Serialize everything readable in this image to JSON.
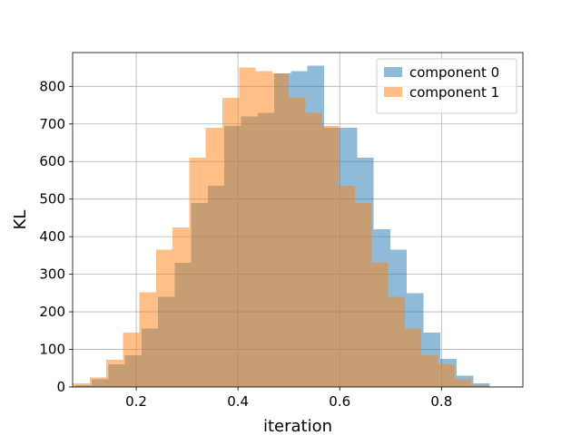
{
  "chart_data": {
    "type": "bar",
    "subtype": "overlaid-histogram",
    "title": "",
    "xlabel": "iteration",
    "ylabel": "KL",
    "xlim": [
      0.075,
      0.96
    ],
    "ylim": [
      0,
      890
    ],
    "xticks": [
      0.2,
      0.4,
      0.6,
      0.8
    ],
    "xtick_labels": [
      "0.2",
      "0.4",
      "0.6",
      "0.8"
    ],
    "yticks": [
      0,
      100,
      200,
      300,
      400,
      500,
      600,
      700,
      800
    ],
    "ytick_labels": [
      "0",
      "100",
      "200",
      "300",
      "400",
      "500",
      "600",
      "700",
      "800"
    ],
    "grid": true,
    "legend_position": "top-right",
    "series": [
      {
        "name": "component 0",
        "color": "#1f77b4",
        "opacity": 0.5,
        "bin_edges": [
          0.08,
          0.1126,
          0.1452,
          0.1778,
          0.2104,
          0.243,
          0.2756,
          0.3082,
          0.3408,
          0.3734,
          0.406,
          0.4386,
          0.4712,
          0.5038,
          0.5364,
          0.569,
          0.6016,
          0.6342,
          0.6668,
          0.6994,
          0.732,
          0.7646,
          0.7972,
          0.8298,
          0.8624,
          0.895,
          0.92
        ],
        "counts": [
          5,
          20,
          60,
          85,
          155,
          240,
          330,
          490,
          535,
          695,
          720,
          730,
          835,
          840,
          855,
          690,
          690,
          610,
          420,
          365,
          250,
          145,
          75,
          30,
          10,
          0
        ]
      },
      {
        "name": "component 1",
        "color": "#ff7f0e",
        "opacity": 0.5,
        "bin_edges": [
          0.076,
          0.1086,
          0.1412,
          0.1738,
          0.2064,
          0.239,
          0.2716,
          0.3042,
          0.3368,
          0.3694,
          0.402,
          0.4346,
          0.4672,
          0.4998,
          0.5324,
          0.565,
          0.5976,
          0.6302,
          0.6628,
          0.6954,
          0.728,
          0.7606,
          0.7932,
          0.8258,
          0.8584,
          0.891
        ],
        "counts": [
          10,
          25,
          72,
          145,
          252,
          365,
          425,
          610,
          690,
          770,
          850,
          840,
          835,
          770,
          730,
          695,
          535,
          490,
          330,
          240,
          155,
          85,
          60,
          20,
          5
        ]
      }
    ]
  }
}
